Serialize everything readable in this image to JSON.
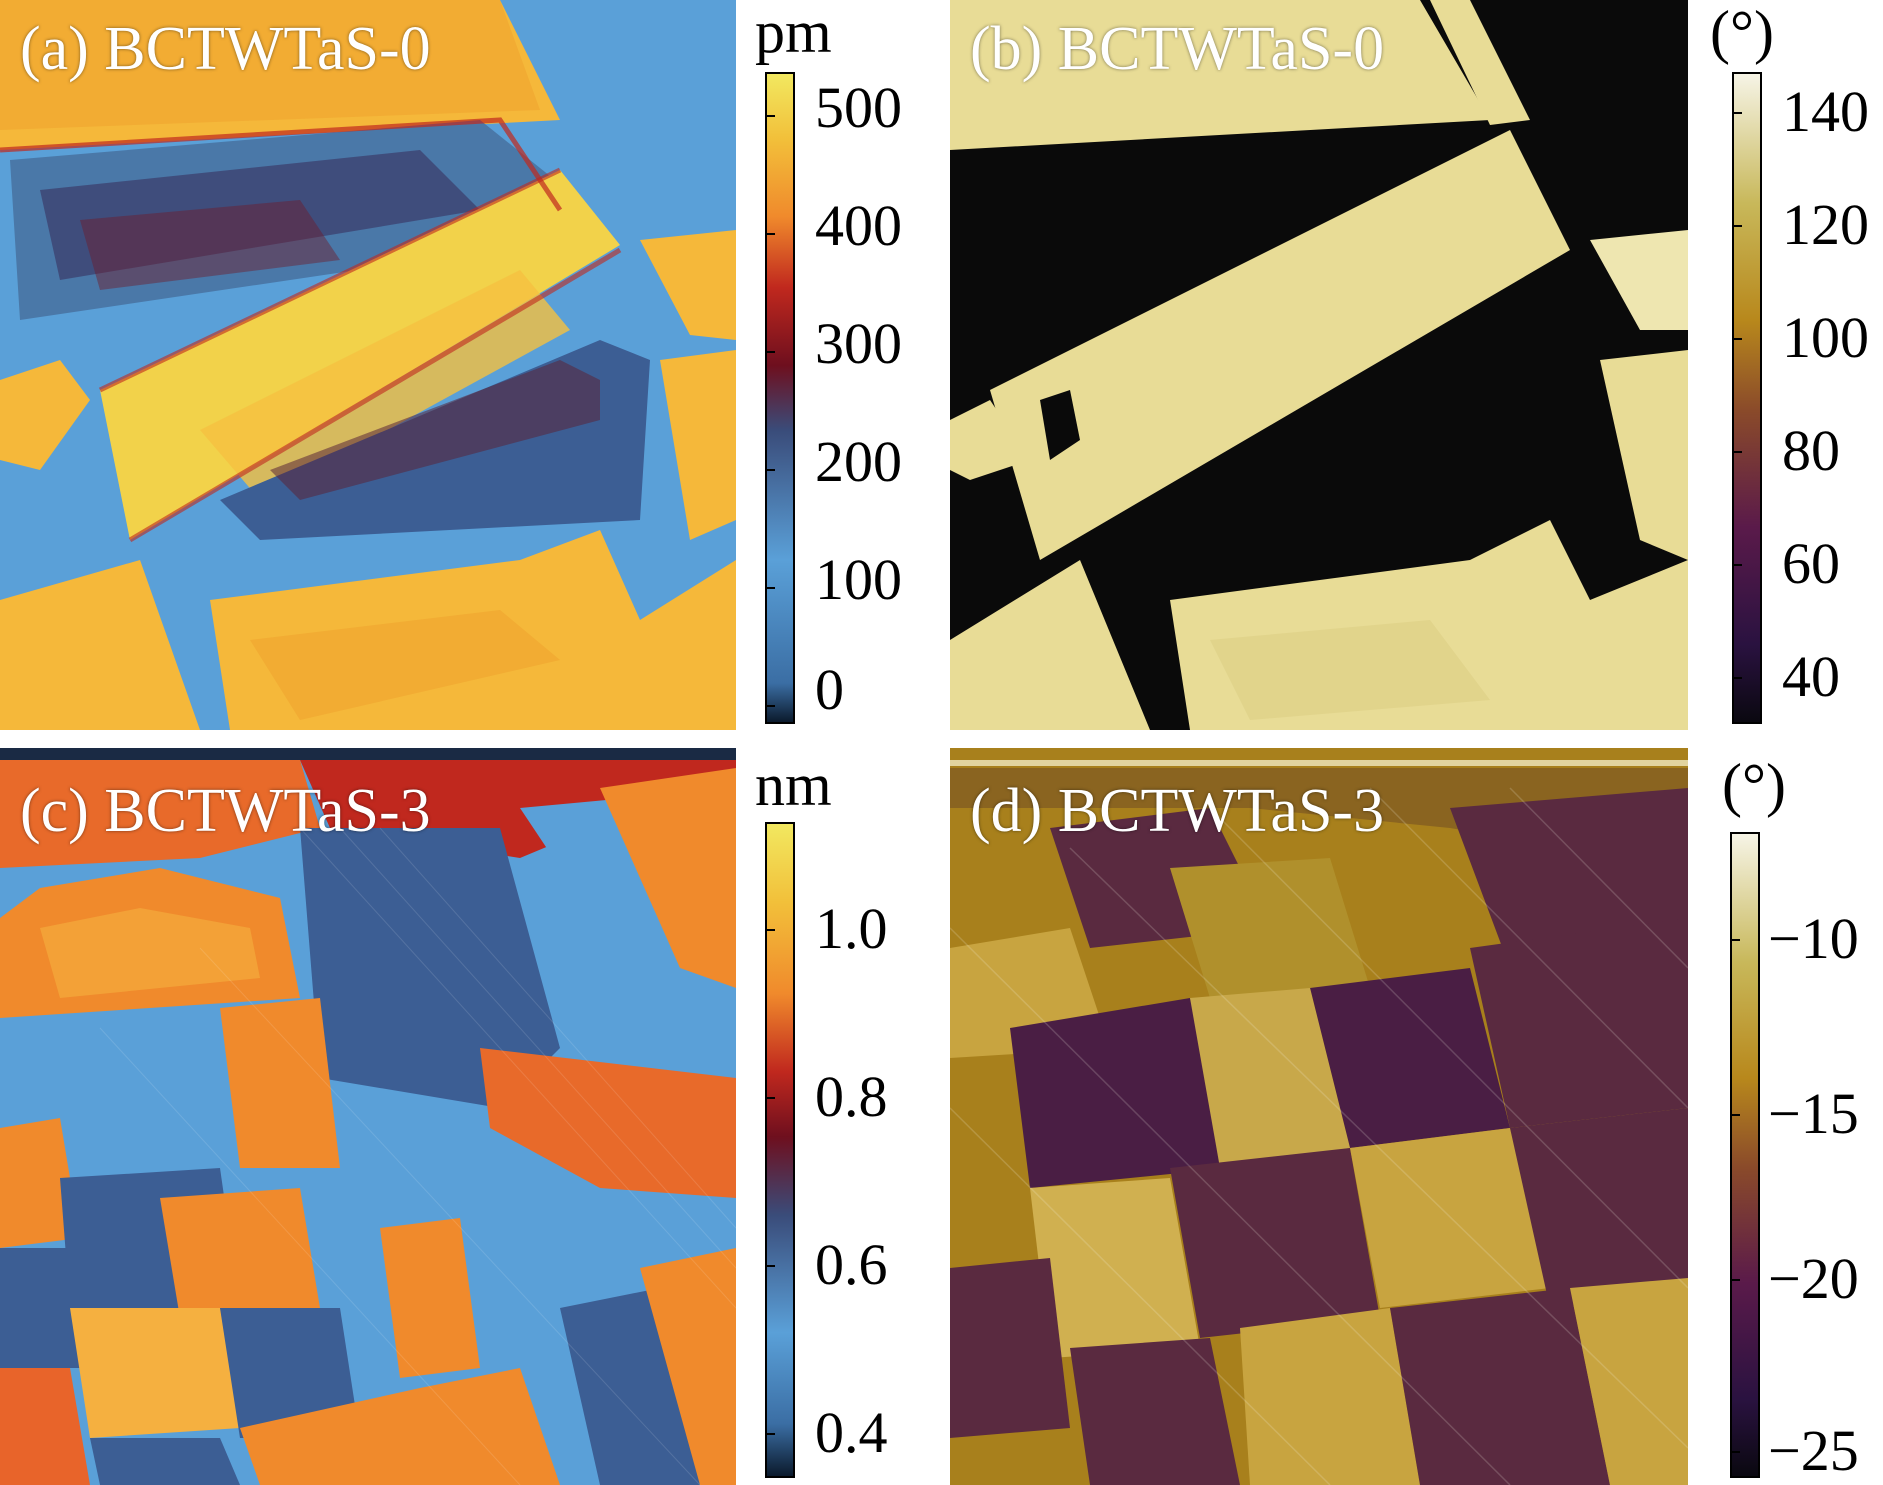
{
  "panels": [
    {
      "id": "a",
      "label": "(a) BCTWTaS-0",
      "colormap": "amplitude"
    },
    {
      "id": "b",
      "label": "(b) BCTWTaS-0",
      "colormap": "phase"
    },
    {
      "id": "c",
      "label": "(c) BCTWTaS-3",
      "colormap": "amplitude"
    },
    {
      "id": "d",
      "label": "(d) BCTWTaS-3",
      "colormap": "phase"
    }
  ],
  "colorbars": [
    {
      "id": "a",
      "unit": "pm",
      "ticks": [
        "500",
        "400",
        "300",
        "200",
        "100",
        "0"
      ]
    },
    {
      "id": "b",
      "unit": "(°)",
      "ticks": [
        "140",
        "120",
        "100",
        "80",
        "60",
        "40"
      ]
    },
    {
      "id": "c",
      "unit": "nm",
      "ticks": [
        "1.0",
        "0.8",
        "0.6",
        "0.4"
      ]
    },
    {
      "id": "d",
      "unit": "(°)",
      "ticks": [
        "−10",
        "−15",
        "−20",
        "−25"
      ]
    }
  ],
  "colors": {
    "amp_low": "#0f2a44",
    "amp_blue": "#5aa0d8",
    "amp_dark_red": "#6e0f1e",
    "amp_red": "#c0281e",
    "amp_orange": "#f08a2c",
    "amp_yellow": "#f2dc4a",
    "phase_dark": "#0a0a0a",
    "phase_light": "#e8dc96",
    "phase_gold": "#b8881c",
    "phase_purple": "#3a1238",
    "phase_white": "#f6f4e6"
  }
}
